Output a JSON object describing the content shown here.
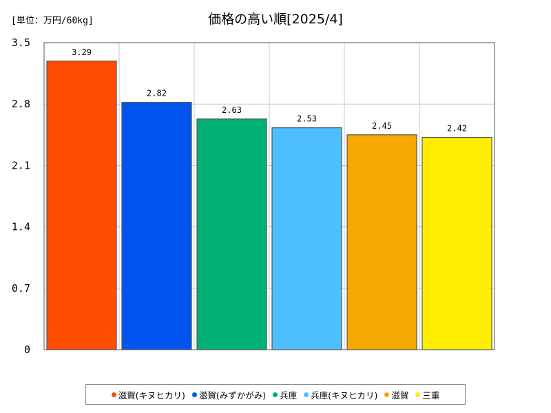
{
  "chart_data": {
    "type": "bar",
    "title": "価格の高い順[2025/4]",
    "unit_label": "[単位：万円/60kg]",
    "categories": [
      "滋賀(キヌヒカリ)",
      "滋賀(みずかがみ)",
      "兵庫",
      "兵庫(キヌヒカリ)",
      "滋賀",
      "三重"
    ],
    "values": [
      3.29,
      2.82,
      2.63,
      2.53,
      2.45,
      2.42
    ],
    "value_labels": [
      "3.29",
      "2.82",
      "2.63",
      "2.53",
      "2.45",
      "2.42"
    ],
    "colors": [
      "#ff4c00",
      "#0055ee",
      "#00b077",
      "#4dbfff",
      "#f5a800",
      "#ffee00"
    ],
    "ylim": [
      0,
      3.5
    ],
    "yticks": [
      0,
      0.7,
      1.4,
      2.1,
      2.8,
      3.5
    ],
    "ytick_labels": [
      "0",
      "0.7",
      "1.4",
      "2.1",
      "2.8",
      "3.5"
    ],
    "grid": true,
    "legend_position": "bottom",
    "legend": [
      "滋賀(キヌヒカリ)",
      "滋賀(みずかがみ)",
      "兵庫",
      "兵庫(キヌヒカリ)",
      "滋賀",
      "三重"
    ]
  }
}
